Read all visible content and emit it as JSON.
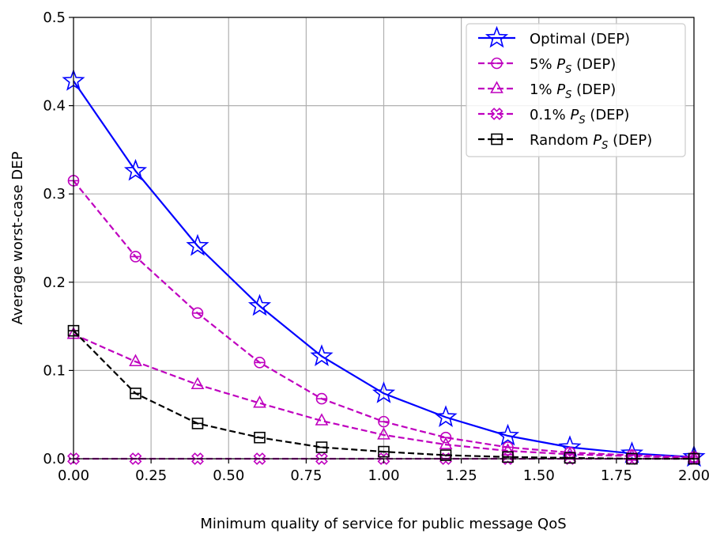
{
  "chart_data": {
    "type": "line",
    "title": "",
    "xlabel": "Minimum quality of service for public message QoS",
    "ylabel": "Average worst-case DEP",
    "xlim": [
      0,
      2.0
    ],
    "ylim": [
      0,
      0.5
    ],
    "xticks": [
      "0.00",
      "0.25",
      "0.50",
      "0.75",
      "1.00",
      "1.25",
      "1.50",
      "1.75",
      "2.00"
    ],
    "yticks": [
      "0.0",
      "0.1",
      "0.2",
      "0.3",
      "0.4",
      "0.5"
    ],
    "grid": true,
    "legend_position": "top-right",
    "x": [
      0,
      0.2,
      0.4,
      0.6,
      0.8,
      1.0,
      1.2,
      1.4,
      1.6,
      1.8,
      2.0
    ],
    "series": [
      {
        "name": "Optimal (DEP)",
        "color": "#0000ff",
        "linestyle": "solid",
        "marker": "star",
        "values": [
          0.428,
          0.326,
          0.241,
          0.173,
          0.116,
          0.074,
          0.047,
          0.026,
          0.013,
          0.006,
          0.002
        ]
      },
      {
        "name": "5% P_S (DEP)",
        "color": "#bf00bf",
        "linestyle": "dashed",
        "marker": "circle-line",
        "values": [
          0.315,
          0.229,
          0.165,
          0.109,
          0.068,
          0.042,
          0.024,
          0.013,
          0.007,
          0.004,
          0.002
        ]
      },
      {
        "name": "1% P_S (DEP)",
        "color": "#bf00bf",
        "linestyle": "dashed",
        "marker": "triangle-line",
        "values": [
          0.141,
          0.11,
          0.084,
          0.063,
          0.043,
          0.027,
          0.016,
          0.009,
          0.005,
          0.003,
          0.001
        ]
      },
      {
        "name": "0.1% P_S (DEP)",
        "color": "#bf00bf",
        "linestyle": "dashed",
        "marker": "x-filled",
        "values": [
          0,
          0,
          0,
          0,
          0,
          0,
          0,
          0,
          0,
          0,
          0
        ]
      },
      {
        "name": "Random P_S (DEP)",
        "color": "#000000",
        "linestyle": "dashed",
        "marker": "square-line",
        "values": [
          0.145,
          0.074,
          0.04,
          0.024,
          0.013,
          0.008,
          0.004,
          0.002,
          0.001,
          0.0,
          0.0
        ]
      }
    ]
  }
}
